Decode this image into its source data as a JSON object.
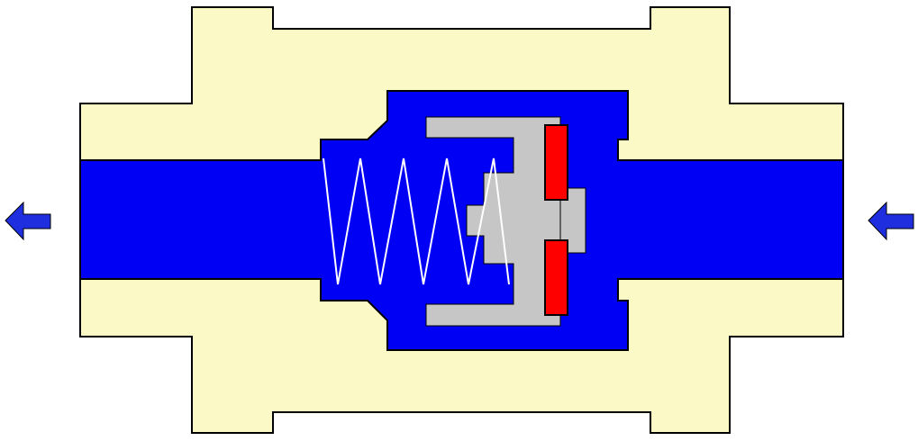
{
  "diagram": {
    "type": "check-valve-cross-section",
    "flow_direction": "right-to-left",
    "colors": {
      "body": "#fbf9c5",
      "fluid": "#0000f5",
      "poppet": "#c6c6c6",
      "seal": "#ff0000",
      "spring": "#ffffff",
      "outline": "#000000",
      "arrow": "#1f2fe0",
      "background": "#ffffff"
    },
    "parts": [
      {
        "id": "valve-body",
        "icon": "housing"
      },
      {
        "id": "flow-channel",
        "icon": "fluid"
      },
      {
        "id": "poppet",
        "icon": "poppet"
      },
      {
        "id": "seal-top",
        "icon": "seal"
      },
      {
        "id": "seal-bottom",
        "icon": "seal"
      },
      {
        "id": "spring",
        "icon": "spring"
      },
      {
        "id": "inlet-arrow",
        "icon": "left-arrow-icon"
      },
      {
        "id": "outlet-arrow",
        "icon": "left-arrow-icon"
      }
    ]
  }
}
